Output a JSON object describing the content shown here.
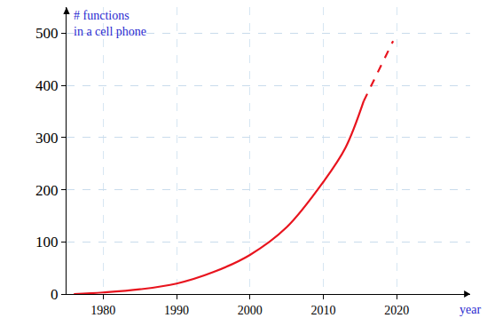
{
  "chart_data": {
    "type": "line",
    "ylabel": "# functions\nin a cell phone",
    "xlabel": "year",
    "x": [
      1976,
      1980,
      1985,
      1990,
      1995,
      2000,
      2005,
      2010,
      2013,
      2015.5,
      2019.5
    ],
    "series": [
      {
        "color": "#e8141e",
        "line_style": "solid",
        "values": [
          0,
          3,
          9,
          20,
          42,
          75,
          128,
          215,
          280,
          370,
          null
        ]
      },
      {
        "color": "#e8141e",
        "line_style": "dashed",
        "values": [
          null,
          null,
          null,
          null,
          null,
          null,
          null,
          null,
          null,
          370,
          485
        ]
      }
    ],
    "xlim": [
      1975,
      2030
    ],
    "xticks": [
      1980,
      1990,
      2000,
      2010,
      2020
    ],
    "ylim": [
      0,
      550
    ],
    "yticks": [
      0,
      100,
      200,
      300,
      400,
      500
    ],
    "grid": true
  }
}
